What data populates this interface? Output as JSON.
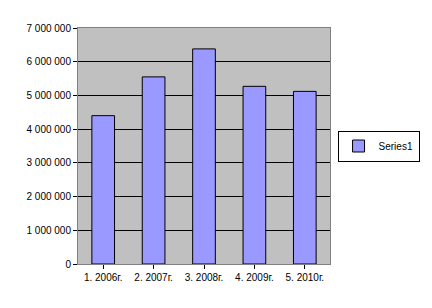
{
  "chart_data": {
    "type": "bar",
    "categories": [
      "1. 2006г.",
      "2. 2007г.",
      "3. 2008г.",
      "4. 2009г.",
      "5. 2010г."
    ],
    "series": [
      {
        "name": "Series1",
        "color": "#9999ff",
        "values": [
          4400000,
          5550000,
          6380000,
          5270000,
          5120000
        ]
      }
    ],
    "ylim": [
      0,
      7000000
    ],
    "yticks": [
      0,
      {
        "value": 1000000,
        "label": "1 000 000"
      },
      {
        "value": 2000000,
        "label": "2 000 000"
      },
      {
        "value": 3000000,
        "label": "3 000 000"
      },
      {
        "value": 4000000,
        "label": "4 000 000"
      },
      {
        "value": 5000000,
        "label": "5 000 000"
      },
      {
        "value": 6000000,
        "label": "6 000 000"
      },
      {
        "value": 7000000,
        "label": "7 000 000"
      }
    ],
    "grid": true,
    "legend": "right"
  }
}
